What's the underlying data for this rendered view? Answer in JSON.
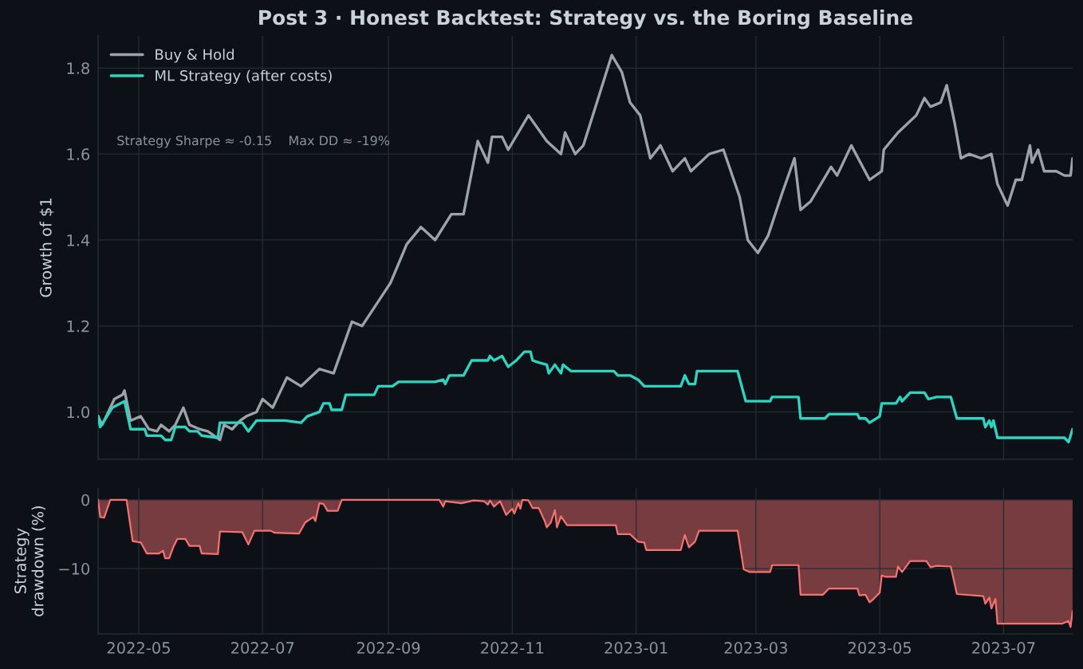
{
  "chart_data": [
    {
      "type": "line",
      "title": "Post 3 · Honest Backtest: Strategy vs. the Boring Baseline",
      "ylabel": "Growth of $1",
      "legend": "top left",
      "grid": true,
      "tick_labels": "y",
      "annotations": [
        "Strategy Sharpe ≈ -0.15    Max DD ≈ -19%"
      ],
      "xlim": [
        "2022-04-11",
        "2023-08-04"
      ],
      "xticks": [
        {
          "value": "2022-05-01",
          "label": null
        },
        {
          "value": "2022-07-01",
          "label": null
        },
        {
          "value": "2022-09-01",
          "label": null
        },
        {
          "value": "2022-11-01",
          "label": null
        },
        {
          "value": "2023-01-01",
          "label": null
        },
        {
          "value": "2023-03-01",
          "label": null
        },
        {
          "value": "2023-05-01",
          "label": null
        },
        {
          "value": "2023-07-01",
          "label": null
        }
      ],
      "ylim": [
        0.89,
        1.875
      ],
      "yticks": [
        {
          "value": 1.0,
          "label": "1.0"
        },
        {
          "value": 1.2,
          "label": "1.2"
        },
        {
          "value": 1.4,
          "label": "1.4"
        },
        {
          "value": 1.6,
          "label": "1.6"
        },
        {
          "value": 1.8,
          "label": "1.8"
        }
      ],
      "series": [
        {
          "name": "Buy & Hold",
          "color": "#9ea3aa",
          "x": [
            "2022-04-11",
            "2022-04-13",
            "2022-04-17",
            "2022-04-19",
            "2022-04-23",
            "2022-04-24",
            "2022-04-27",
            "2022-05-02",
            "2022-05-06",
            "2022-05-10",
            "2022-05-12",
            "2022-05-16",
            "2022-05-19",
            "2022-05-23",
            "2022-05-26",
            "2022-05-31",
            "2022-06-04",
            "2022-06-10",
            "2022-06-12",
            "2022-06-16",
            "2022-06-20",
            "2022-06-23",
            "2022-06-28",
            "2022-07-01",
            "2022-07-06",
            "2022-07-13",
            "2022-07-20",
            "2022-07-29",
            "2022-08-05",
            "2022-08-14",
            "2022-08-19",
            "2022-08-26",
            "2022-09-02",
            "2022-09-10",
            "2022-09-17",
            "2022-09-24",
            "2022-10-02",
            "2022-10-08",
            "2022-10-15",
            "2022-10-20",
            "2022-10-22",
            "2022-10-27",
            "2022-10-30",
            "2022-11-09",
            "2022-11-18",
            "2022-11-25",
            "2022-11-27",
            "2022-12-02",
            "2022-12-06",
            "2022-12-14",
            "2022-12-20",
            "2022-12-25",
            "2022-12-29",
            "2023-01-03",
            "2023-01-08",
            "2023-01-13",
            "2023-01-19",
            "2023-01-25",
            "2023-01-28",
            "2023-02-06",
            "2023-02-13",
            "2023-02-21",
            "2023-02-25",
            "2023-03-02",
            "2023-03-07",
            "2023-03-14",
            "2023-03-20",
            "2023-03-23",
            "2023-03-28",
            "2023-04-07",
            "2023-04-10",
            "2023-04-17",
            "2023-04-26",
            "2023-05-02",
            "2023-05-03",
            "2023-05-10",
            "2023-05-19",
            "2023-05-23",
            "2023-05-26",
            "2023-05-31",
            "2023-06-03",
            "2023-06-07",
            "2023-06-10",
            "2023-06-14",
            "2023-06-20",
            "2023-06-25",
            "2023-06-28",
            "2023-07-03",
            "2023-07-07",
            "2023-07-10",
            "2023-07-14",
            "2023-07-15",
            "2023-07-18",
            "2023-07-21",
            "2023-07-27",
            "2023-07-31",
            "2023-08-03",
            "2023-08-04"
          ],
          "values": [
            0.99,
            0.97,
            1.01,
            1.03,
            1.04,
            1.05,
            0.98,
            0.99,
            0.96,
            0.955,
            0.97,
            0.955,
            0.97,
            1.01,
            0.97,
            0.96,
            0.955,
            0.935,
            0.97,
            0.96,
            0.98,
            0.99,
            1.0,
            1.03,
            1.01,
            1.08,
            1.06,
            1.1,
            1.09,
            1.21,
            1.2,
            1.25,
            1.3,
            1.39,
            1.43,
            1.4,
            1.46,
            1.46,
            1.63,
            1.58,
            1.64,
            1.64,
            1.61,
            1.69,
            1.63,
            1.6,
            1.65,
            1.6,
            1.62,
            1.74,
            1.83,
            1.79,
            1.72,
            1.69,
            1.59,
            1.62,
            1.56,
            1.59,
            1.56,
            1.6,
            1.61,
            1.5,
            1.4,
            1.37,
            1.41,
            1.51,
            1.59,
            1.47,
            1.49,
            1.57,
            1.55,
            1.62,
            1.54,
            1.56,
            1.61,
            1.65,
            1.69,
            1.73,
            1.71,
            1.72,
            1.76,
            1.67,
            1.59,
            1.6,
            1.59,
            1.6,
            1.53,
            1.48,
            1.54,
            1.54,
            1.62,
            1.58,
            1.61,
            1.56,
            1.56,
            1.55,
            1.55,
            1.59
          ]
        },
        {
          "name": "ML Strategy (after costs)",
          "color": "#2dd4bf",
          "x": [
            "2022-04-11",
            "2022-04-12",
            "2022-04-18",
            "2022-04-24",
            "2022-04-27",
            "2022-05-04",
            "2022-05-05",
            "2022-05-12",
            "2022-05-14",
            "2022-05-17",
            "2022-05-19",
            "2022-05-24",
            "2022-05-26",
            "2022-05-30",
            "2022-06-01",
            "2022-06-09",
            "2022-06-10",
            "2022-06-21",
            "2022-06-24",
            "2022-06-28",
            "2022-07-12",
            "2022-07-20",
            "2022-07-23",
            "2022-07-29",
            "2022-07-31",
            "2022-08-03",
            "2022-08-04",
            "2022-08-09",
            "2022-08-11",
            "2022-08-25",
            "2022-08-27",
            "2022-09-03",
            "2022-09-06",
            "2022-09-24",
            "2022-09-28",
            "2022-09-29",
            "2022-10-01",
            "2022-10-08",
            "2022-10-12",
            "2022-10-20",
            "2022-10-21",
            "2022-10-23",
            "2022-10-27",
            "2022-10-30",
            "2022-11-03",
            "2022-11-07",
            "2022-11-10",
            "2022-11-11",
            "2022-11-14",
            "2022-11-18",
            "2022-11-19",
            "2022-11-22",
            "2022-11-25",
            "2022-11-26",
            "2022-11-30",
            "2022-12-21",
            "2022-12-23",
            "2022-12-29",
            "2023-01-02",
            "2023-01-05",
            "2023-01-23",
            "2023-01-25",
            "2023-01-27",
            "2023-01-30",
            "2023-01-31",
            "2023-02-20",
            "2023-02-24",
            "2023-03-08",
            "2023-03-09",
            "2023-03-22",
            "2023-03-23",
            "2023-04-04",
            "2023-04-06",
            "2023-04-20",
            "2023-04-21",
            "2023-04-24",
            "2023-04-26",
            "2023-05-01",
            "2023-05-02",
            "2023-05-09",
            "2023-05-11",
            "2023-05-12",
            "2023-05-16",
            "2023-05-23",
            "2023-05-25",
            "2023-05-29",
            "2023-06-05",
            "2023-06-08",
            "2023-06-21",
            "2023-06-22",
            "2023-06-24",
            "2023-06-25",
            "2023-06-26",
            "2023-06-28",
            "2023-07-31",
            "2023-08-02",
            "2023-08-04"
          ],
          "values": [
            0.99,
            0.965,
            1.01,
            1.025,
            0.96,
            0.96,
            0.945,
            0.945,
            0.935,
            0.935,
            0.965,
            0.965,
            0.955,
            0.955,
            0.945,
            0.94,
            0.975,
            0.975,
            0.955,
            0.98,
            0.98,
            0.975,
            0.99,
            1.0,
            1.02,
            1.02,
            1.005,
            1.005,
            1.04,
            1.04,
            1.06,
            1.06,
            1.07,
            1.07,
            1.075,
            1.065,
            1.085,
            1.085,
            1.12,
            1.12,
            1.13,
            1.12,
            1.13,
            1.105,
            1.12,
            1.14,
            1.14,
            1.12,
            1.115,
            1.11,
            1.09,
            1.11,
            1.09,
            1.11,
            1.095,
            1.095,
            1.085,
            1.085,
            1.075,
            1.06,
            1.06,
            1.085,
            1.065,
            1.065,
            1.095,
            1.095,
            1.025,
            1.025,
            1.035,
            1.035,
            0.985,
            0.985,
            0.995,
            0.995,
            0.985,
            0.985,
            0.975,
            0.99,
            1.02,
            1.02,
            1.035,
            1.025,
            1.045,
            1.045,
            1.03,
            1.035,
            1.035,
            0.985,
            0.985,
            0.965,
            0.98,
            0.965,
            0.98,
            0.94,
            0.94,
            0.93,
            0.96
          ]
        }
      ]
    },
    {
      "type": "area",
      "ylabel": "Strategy\ndrawdown (%)",
      "grid": true,
      "xlim": [
        "2022-04-11",
        "2023-08-04"
      ],
      "xticks": [
        {
          "value": "2022-05-01",
          "label": "2022-05"
        },
        {
          "value": "2022-07-01",
          "label": "2022-07"
        },
        {
          "value": "2022-09-01",
          "label": "2022-09"
        },
        {
          "value": "2022-11-01",
          "label": "2022-11"
        },
        {
          "value": "2023-01-01",
          "label": "2023-01"
        },
        {
          "value": "2023-03-01",
          "label": "2023-03"
        },
        {
          "value": "2023-05-01",
          "label": "2023-05"
        },
        {
          "value": "2023-07-01",
          "label": "2023-07"
        }
      ],
      "ylim": [
        -19.5,
        1.7
      ],
      "yticks": [
        {
          "value": -10,
          "label": "−10"
        },
        0
      ],
      "series": [
        {
          "color": "#f87171",
          "x": [
            "2022-04-11",
            "2022-04-12",
            "2022-04-14",
            "2022-04-17",
            "2022-04-25",
            "2022-04-28",
            "2022-05-02",
            "2022-05-05",
            "2022-05-11",
            "2022-05-13",
            "2022-05-14",
            "2022-05-16",
            "2022-05-18",
            "2022-05-20",
            "2022-05-24",
            "2022-05-26",
            "2022-05-31",
            "2022-06-01",
            "2022-06-09",
            "2022-06-10",
            "2022-06-21",
            "2022-06-24",
            "2022-06-27",
            "2022-07-05",
            "2022-07-07",
            "2022-07-19",
            "2022-07-22",
            "2022-07-26",
            "2022-07-27",
            "2022-07-29",
            "2022-07-31",
            "2022-08-02",
            "2022-08-07",
            "2022-08-09",
            "2022-09-26",
            "2022-09-28",
            "2022-09-29",
            "2022-10-07",
            "2022-10-13",
            "2022-10-18",
            "2022-10-20",
            "2022-10-21",
            "2022-10-23",
            "2022-10-26",
            "2022-10-29",
            "2022-11-01",
            "2022-11-02",
            "2022-11-04",
            "2022-11-05",
            "2022-11-06",
            "2022-11-09",
            "2022-11-11",
            "2022-11-14",
            "2022-11-17",
            "2022-11-18",
            "2022-11-20",
            "2022-11-22",
            "2022-11-23",
            "2022-11-25",
            "2022-11-28",
            "2022-12-22",
            "2022-12-23",
            "2022-12-29",
            "2023-01-02",
            "2023-01-05",
            "2023-01-06",
            "2023-01-23",
            "2023-01-25",
            "2023-01-27",
            "2023-01-30",
            "2023-02-01",
            "2023-02-20",
            "2023-02-23",
            "2023-02-26",
            "2023-03-08",
            "2023-03-09",
            "2023-03-22",
            "2023-03-23",
            "2023-04-03",
            "2023-04-06",
            "2023-04-20",
            "2023-04-21",
            "2023-04-24",
            "2023-04-26",
            "2023-04-28",
            "2023-05-01",
            "2023-05-02",
            "2023-05-04",
            "2023-05-09",
            "2023-05-10",
            "2023-05-12",
            "2023-05-16",
            "2023-05-24",
            "2023-05-26",
            "2023-05-29",
            "2023-06-05",
            "2023-06-08",
            "2023-06-21",
            "2023-06-22",
            "2023-06-24",
            "2023-06-25",
            "2023-06-27",
            "2023-06-28",
            "2023-07-30",
            "2023-08-02",
            "2023-08-03",
            "2023-08-04"
          ],
          "values": [
            0,
            -2.5,
            -2.6,
            0,
            0,
            -6.0,
            -6.2,
            -7.8,
            -7.8,
            -7.4,
            -8.5,
            -8.5,
            -6.9,
            -5.7,
            -5.7,
            -6.7,
            -6.7,
            -7.8,
            -7.9,
            -4.6,
            -4.7,
            -6.5,
            -4.5,
            -4.5,
            -4.8,
            -4.9,
            -3.3,
            -2.5,
            -3.1,
            -0.5,
            -0.6,
            -1.6,
            -1.6,
            0,
            0,
            -1.0,
            -0.2,
            -0.5,
            -0.1,
            -0.2,
            -0.7,
            -0.1,
            -1.0,
            -0.2,
            -2.2,
            -1.3,
            -2.0,
            -0.5,
            -1.3,
            0,
            -0.1,
            -1.2,
            -1.2,
            -3.1,
            -4.0,
            -3.3,
            -1.5,
            -4.0,
            -2.4,
            -3.7,
            -3.7,
            -5.0,
            -5.0,
            -6.1,
            -6.2,
            -7.3,
            -7.3,
            -5.1,
            -6.9,
            -6.1,
            -4.5,
            -4.5,
            -10.1,
            -10.5,
            -10.5,
            -9.5,
            -9.5,
            -13.8,
            -13.8,
            -12.9,
            -12.9,
            -13.9,
            -13.8,
            -14.9,
            -14.4,
            -13.5,
            -11.0,
            -11.2,
            -11.2,
            -9.7,
            -10.5,
            -8.9,
            -8.9,
            -9.8,
            -9.6,
            -9.7,
            -13.7,
            -14.0,
            -15.1,
            -14.2,
            -15.8,
            -14.4,
            -18.0,
            -18.0,
            -17.6,
            -18.5,
            -16.2
          ]
        }
      ]
    }
  ]
}
